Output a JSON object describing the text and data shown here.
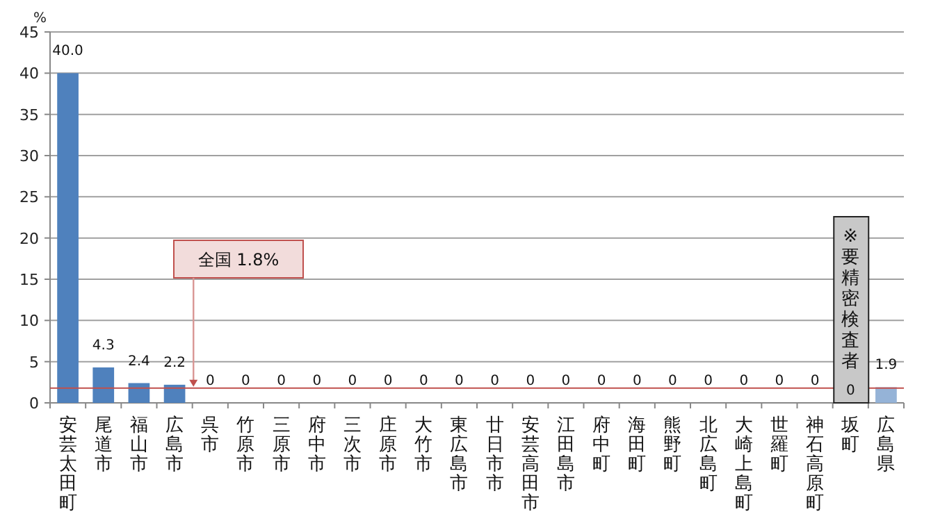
{
  "chart_data": {
    "type": "bar",
    "ylabel": "%",
    "categories": [
      "安芸太田町",
      "尾道市",
      "福山市",
      "広島市",
      "呉市",
      "竹原市",
      "三原市",
      "府中市",
      "三次市",
      "庄原市",
      "大竹市",
      "東広島市",
      "廿日市市",
      "安芸高田市",
      "江田島市",
      "府中町",
      "海田町",
      "熊野町",
      "北広島町",
      "大崎上島町",
      "世羅町",
      "神石高原町",
      "坂町",
      "広島県"
    ],
    "values": [
      40.0,
      4.3,
      2.4,
      2.2,
      0,
      0,
      0,
      0,
      0,
      0,
      0,
      0,
      0,
      0,
      0,
      0,
      0,
      0,
      0,
      0,
      0,
      0,
      0,
      1.9
    ],
    "value_labels": [
      "40.0",
      "4.3",
      "2.4",
      "2.2",
      "0",
      "0",
      "0",
      "0",
      "0",
      "0",
      "0",
      "0",
      "0",
      "0",
      "0",
      "0",
      "0",
      "0",
      "0",
      "0",
      "0",
      "0",
      "0",
      "1.9"
    ],
    "colors": [
      "#4f81bd",
      "#4f81bd",
      "#4f81bd",
      "#4f81bd",
      "#4f81bd",
      "#4f81bd",
      "#4f81bd",
      "#4f81bd",
      "#4f81bd",
      "#4f81bd",
      "#4f81bd",
      "#4f81bd",
      "#4f81bd",
      "#4f81bd",
      "#4f81bd",
      "#4f81bd",
      "#4f81bd",
      "#4f81bd",
      "#4f81bd",
      "#4f81bd",
      "#4f81bd",
      "#4f81bd",
      "#4f81bd",
      "#95b3d7"
    ],
    "ylim": [
      0,
      45
    ],
    "yticks": [
      0,
      5,
      10,
      15,
      20,
      25,
      30,
      35,
      40,
      45
    ],
    "grid": "y",
    "ref_lines": [
      {
        "axis": "y",
        "value": 1.8,
        "label": "全国 1.8%",
        "color": "#c0504d"
      }
    ],
    "annotations": [
      {
        "text": "※要精密検査者",
        "x": "坂町",
        "y": 0
      }
    ]
  }
}
